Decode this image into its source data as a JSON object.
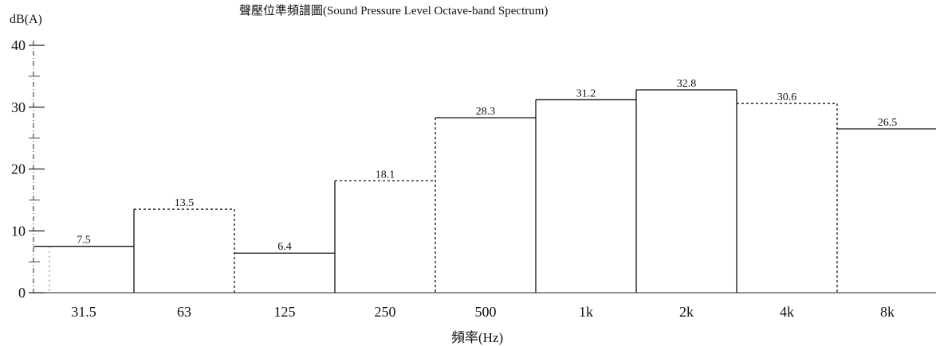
{
  "chart_data": {
    "type": "bar",
    "title": "聲壓位準頻譜圖(Sound Pressure Level Octave-band Spectrum)",
    "ylabel": "dB(A)",
    "xlabel": "頻率(Hz)",
    "categories": [
      "31.5",
      "63",
      "125",
      "250",
      "500",
      "1k",
      "2k",
      "4k",
      "8k"
    ],
    "values": [
      7.5,
      13.5,
      6.4,
      18.1,
      28.3,
      31.2,
      32.8,
      30.6,
      26.5
    ],
    "data_labels": [
      "7.5",
      "13.5",
      "6.4",
      "18.1",
      "28.3",
      "31.2",
      "32.8",
      "30.6",
      "26.5"
    ],
    "yticks": [
      0,
      10,
      20,
      30,
      40
    ],
    "ylim": [
      0,
      40
    ],
    "grid": false,
    "legend": "none",
    "colors": {
      "line": "#111111",
      "background": "#ffffff"
    }
  }
}
